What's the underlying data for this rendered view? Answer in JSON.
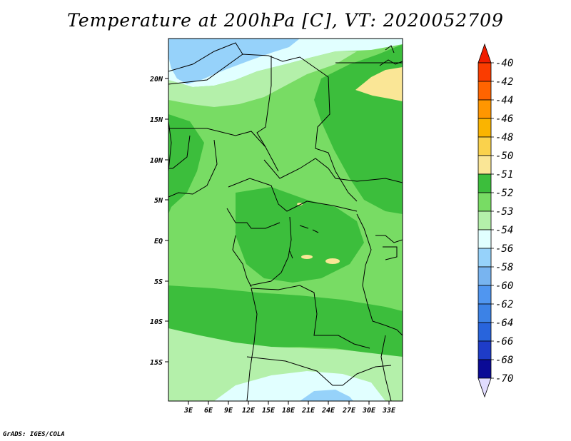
{
  "title": "Temperature at 200hPa [C], VT: 2020052709",
  "credit": "GrADS: IGES/COLA",
  "map": {
    "lat_labels": [
      "20N",
      "15N",
      "10N",
      "5N",
      "EQ",
      "5S",
      "10S",
      "15S"
    ],
    "lon_labels": [
      "3E",
      "6E",
      "9E",
      "12E",
      "15E",
      "18E",
      "21E",
      "24E",
      "27E",
      "30E",
      "33E"
    ],
    "field_colors": {
      "cold_light_blue": "#96d2fa",
      "pale_cyan": "#e1ffff",
      "pale_green": "#b4f0aa",
      "light_green": "#78dc64",
      "green": "#3cbe3c",
      "pale_yellow": "#fae696",
      "border": "#000000"
    }
  },
  "legend": {
    "labels": [
      "-40",
      "-42",
      "-44",
      "-46",
      "-48",
      "-50",
      "-51",
      "-52",
      "-53",
      "-54",
      "-56",
      "-58",
      "-60",
      "-62",
      "-64",
      "-66",
      "-68",
      "-70"
    ],
    "colors": [
      "#f01e00",
      "#fa3c00",
      "#ff6400",
      "#ff9600",
      "#fab400",
      "#fad24c",
      "#fae696",
      "#3cbe3c",
      "#78dc64",
      "#b4f0aa",
      "#e1ffff",
      "#96d2fa",
      "#78b4f0",
      "#5096f0",
      "#3c82e6",
      "#2864dc",
      "#1e3cc8",
      "#0a0a96"
    ],
    "top_arrow_color": "#f01e00",
    "bottom_arrow_color": "#e1dcff"
  }
}
